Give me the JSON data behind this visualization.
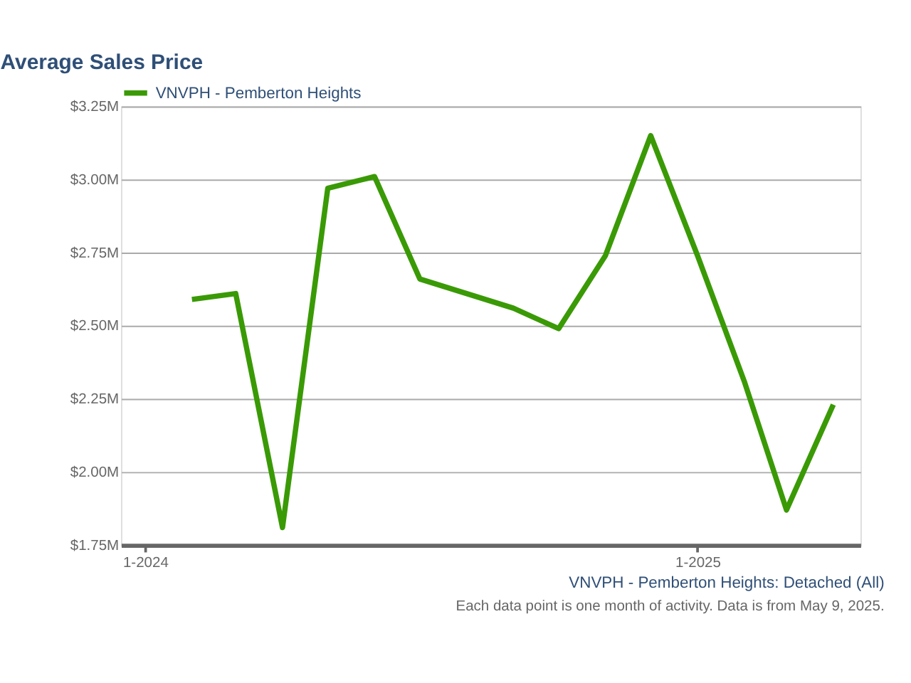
{
  "chart_data": {
    "type": "line",
    "title": "Average Sales Price",
    "x": [
      "2024-02",
      "2024-03",
      "2024-04",
      "2024-05",
      "2024-06",
      "2024-07",
      "2024-08",
      "2024-09",
      "2024-10",
      "2024-11",
      "2024-12",
      "2025-01",
      "2025-02",
      "2025-03",
      "2025-04"
    ],
    "series": [
      {
        "name": "VNVPH - Pemberton Heights",
        "color": "#3a9a06",
        "values": [
          2.59,
          2.61,
          1.81,
          2.97,
          3.01,
          2.66,
          2.61,
          2.56,
          2.49,
          2.74,
          3.15,
          2.74,
          2.31,
          1.87,
          2.23
        ]
      }
    ],
    "xlim": [
      "2023-12-16",
      "2025-04-19"
    ],
    "xticks": [
      {
        "value": "2024-01",
        "label": "1-2024"
      },
      {
        "value": "2025-01",
        "label": "1-2025"
      }
    ],
    "ylim": [
      1.75,
      3.25
    ],
    "yticks": [
      {
        "value": 1.75,
        "label": "$1.75M"
      },
      {
        "value": 2.0,
        "label": "$2.00M"
      },
      {
        "value": 2.25,
        "label": "$2.25M"
      },
      {
        "value": 2.5,
        "label": "$2.50M"
      },
      {
        "value": 2.75,
        "label": "$2.75M"
      },
      {
        "value": 3.0,
        "label": "$3.00M"
      },
      {
        "value": 3.25,
        "label": "$3.25M"
      }
    ],
    "grid": "y",
    "legend": "top",
    "marker": "none",
    "line_style": "solid",
    "annotations": [
      "VNVPH - Pemberton Heights: Detached (All)",
      "Each data point is one month of activity. Data is from May 9, 2025."
    ]
  }
}
